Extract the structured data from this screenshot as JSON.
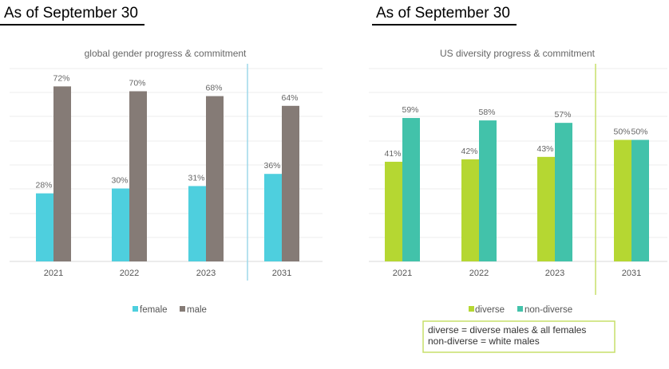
{
  "headings": {
    "left": "As of September 30",
    "right": "As of September 30"
  },
  "chart_data": [
    {
      "type": "bar",
      "title": "global gender progress & commitment",
      "categories": [
        "2021",
        "2022",
        "2023",
        "2031"
      ],
      "series": [
        {
          "name": "female",
          "values": [
            28,
            30,
            31,
            36
          ],
          "labels": [
            "28%",
            "30%",
            "31%",
            "36%"
          ],
          "color": "#4ecfde"
        },
        {
          "name": "male",
          "values": [
            72,
            70,
            68,
            64
          ],
          "labels": [
            "72%",
            "70%",
            "68%",
            "64%"
          ],
          "color": "#857b76"
        }
      ],
      "ylim": [
        0,
        80
      ],
      "grid": true,
      "divider_color": "#9ed8ea",
      "legend": "bottom"
    },
    {
      "type": "bar",
      "title": "US diversity progress & commitment",
      "categories": [
        "2021",
        "2022",
        "2023",
        "2031"
      ],
      "series": [
        {
          "name": "diverse",
          "values": [
            41,
            42,
            43,
            50
          ],
          "labels": [
            "41%",
            "42%",
            "43%",
            "50%"
          ],
          "color": "#b5d732"
        },
        {
          "name": "non-diverse",
          "values": [
            59,
            58,
            57,
            50
          ],
          "labels": [
            "59%",
            "58%",
            "57%",
            "50%"
          ],
          "color": "#42c2aa"
        }
      ],
      "ylim": [
        0,
        80
      ],
      "grid": true,
      "divider_color": "#c7df6a",
      "legend": "bottom",
      "note": [
        "diverse = diverse males & all females",
        "non-diverse = white males"
      ]
    }
  ]
}
